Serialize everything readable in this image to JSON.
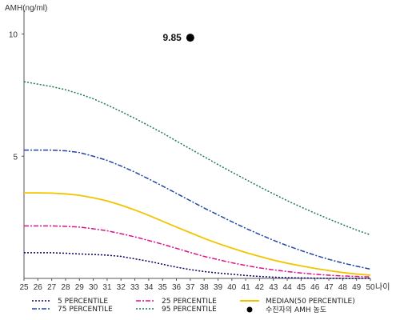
{
  "chart_data": {
    "type": "line",
    "ylabel": "AMH(ng/ml)",
    "xlabel": "나이",
    "x": [
      25,
      26,
      27,
      28,
      29,
      30,
      31,
      32,
      33,
      34,
      35,
      36,
      37,
      38,
      39,
      40,
      41,
      42,
      43,
      44,
      45,
      46,
      47,
      48,
      49,
      50
    ],
    "xlim": [
      25,
      50
    ],
    "ylim": [
      0,
      11
    ],
    "yticks": [
      5,
      10
    ],
    "grid": false,
    "legend_position": "bottom",
    "series": [
      {
        "name": "5 PERCENTILE",
        "color": "#000066",
        "style": "dotted",
        "values": [
          1.05,
          1.05,
          1.05,
          1.03,
          1.0,
          0.98,
          0.95,
          0.9,
          0.8,
          0.7,
          0.58,
          0.46,
          0.36,
          0.28,
          0.22,
          0.17,
          0.12,
          0.08,
          0.05,
          0.03,
          0.02,
          0.01,
          0.0,
          0.0,
          0.0,
          0.0
        ]
      },
      {
        "name": "25 PERCENTILE",
        "color": "#dd1188",
        "style": "dashdot",
        "values": [
          2.15,
          2.15,
          2.15,
          2.13,
          2.1,
          2.03,
          1.95,
          1.83,
          1.7,
          1.55,
          1.4,
          1.23,
          1.06,
          0.9,
          0.77,
          0.64,
          0.53,
          0.43,
          0.35,
          0.28,
          0.22,
          0.17,
          0.13,
          0.1,
          0.08,
          0.06
        ]
      },
      {
        "name": "MEDIAN(50 PERCENTILE)",
        "color": "#f2c400",
        "style": "solid",
        "values": [
          3.5,
          3.5,
          3.49,
          3.46,
          3.4,
          3.3,
          3.17,
          3.0,
          2.8,
          2.58,
          2.34,
          2.1,
          1.87,
          1.64,
          1.43,
          1.24,
          1.06,
          0.9,
          0.75,
          0.62,
          0.51,
          0.41,
          0.32,
          0.24,
          0.18,
          0.13
        ]
      },
      {
        "name": "75 PERCENTILE",
        "color": "#2244aa",
        "style": "dashdot",
        "values": [
          5.25,
          5.25,
          5.25,
          5.22,
          5.15,
          5.0,
          4.83,
          4.6,
          4.35,
          4.07,
          3.78,
          3.48,
          3.18,
          2.88,
          2.6,
          2.32,
          2.05,
          1.8,
          1.56,
          1.34,
          1.14,
          0.95,
          0.78,
          0.63,
          0.5,
          0.38
        ]
      },
      {
        "name": "95 PERCENTILE",
        "color": "#1a7a4a",
        "style": "dotted",
        "values": [
          8.05,
          7.95,
          7.85,
          7.72,
          7.55,
          7.35,
          7.1,
          6.83,
          6.55,
          6.25,
          5.95,
          5.62,
          5.3,
          4.98,
          4.66,
          4.35,
          4.05,
          3.75,
          3.46,
          3.18,
          2.92,
          2.67,
          2.43,
          2.2,
          1.98,
          1.78
        ]
      }
    ],
    "marker": {
      "name": "수진자의 AMH 농도",
      "x": 37,
      "y": 9.85,
      "label": "9.85",
      "color": "#000000"
    }
  }
}
